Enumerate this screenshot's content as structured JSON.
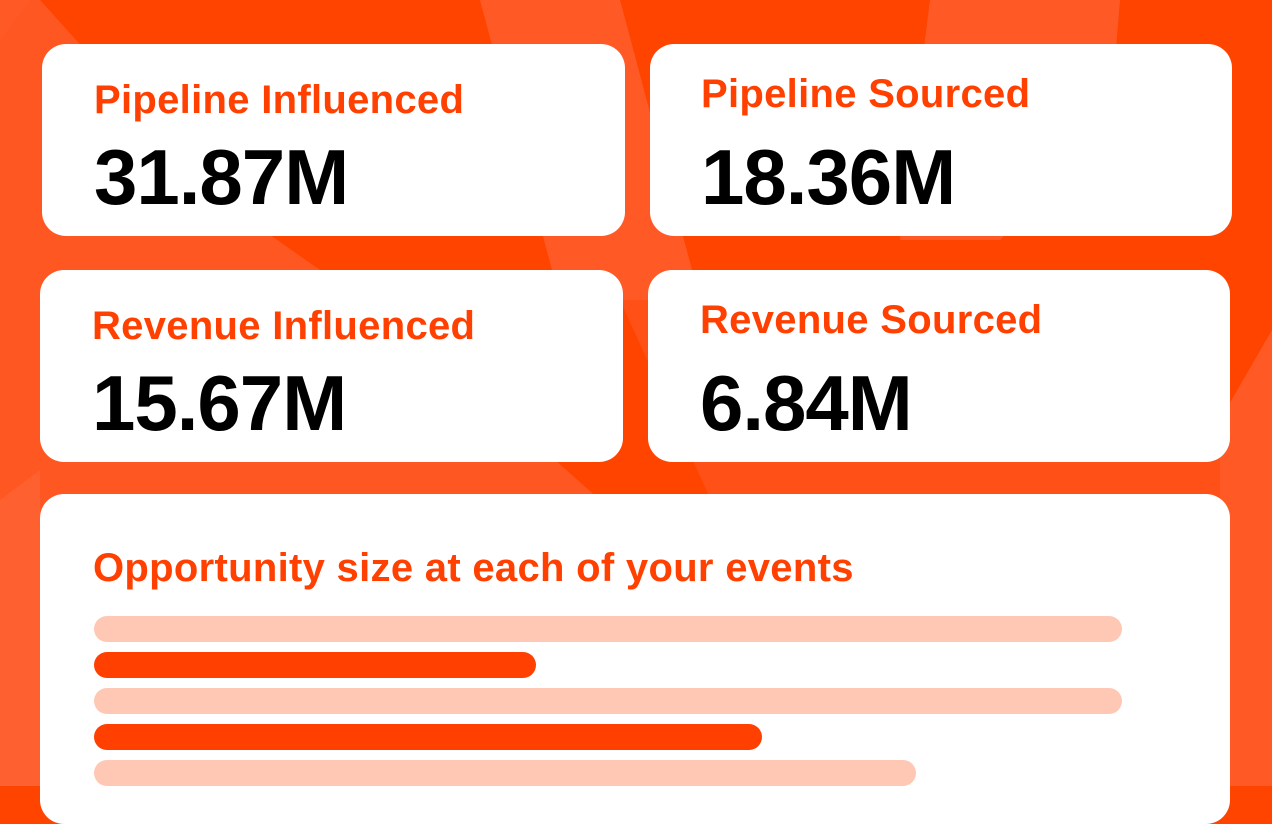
{
  "colors": {
    "background": "#FF4400",
    "background_shape": "#FF5A26",
    "label": "#FF4000",
    "bar_dark": "#FF4000",
    "bar_light": "#FFC8B5"
  },
  "metrics": [
    {
      "label": "Pipeline Influenced",
      "value": "31.87M"
    },
    {
      "label": "Pipeline Sourced",
      "value": "18.36M"
    },
    {
      "label": "Revenue Influenced",
      "value": "15.67M"
    },
    {
      "label": "Revenue Sourced",
      "value": "6.84M"
    }
  ],
  "opportunity": {
    "title": "Opportunity size at each of your events",
    "bars": [
      {
        "kind": "light",
        "fraction": 1.0
      },
      {
        "kind": "dark",
        "fraction": 0.43
      },
      {
        "kind": "light",
        "fraction": 1.0
      },
      {
        "kind": "dark",
        "fraction": 0.65
      },
      {
        "kind": "light",
        "fraction": 0.8
      }
    ]
  }
}
